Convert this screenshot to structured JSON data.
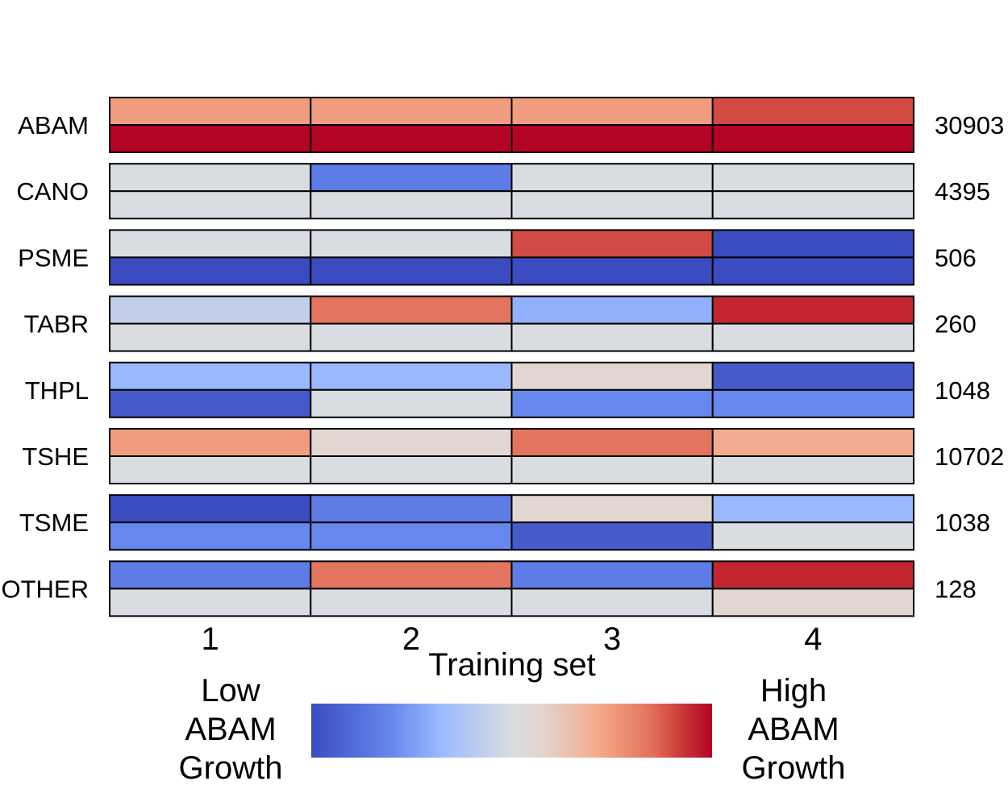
{
  "chart_data": {
    "type": "heatmap",
    "title": "",
    "xlabel": "Training set",
    "ylabel": "",
    "x_categories": [
      "1",
      "2",
      "3",
      "4"
    ],
    "rows": [
      {
        "label": "ABAM",
        "count": "30903",
        "top": [
          0.75,
          0.75,
          0.75,
          0.9
        ],
        "bottom": [
          1.0,
          1.0,
          1.0,
          1.0
        ]
      },
      {
        "label": "CANO",
        "count": "4395",
        "top": [
          0.5,
          0.16,
          0.5,
          0.5
        ],
        "bottom": [
          0.5,
          0.5,
          0.5,
          0.5
        ]
      },
      {
        "label": "PSME",
        "count": "506",
        "top": [
          0.5,
          0.5,
          0.9,
          0.0
        ],
        "bottom": [
          0.0,
          0.0,
          0.0,
          0.0
        ]
      },
      {
        "label": "TABR",
        "count": "260",
        "top": [
          0.43,
          0.84,
          0.3,
          0.95
        ],
        "bottom": [
          0.5,
          0.5,
          0.5,
          0.5
        ]
      },
      {
        "label": "THPL",
        "count": "1048",
        "top": [
          0.32,
          0.32,
          0.57,
          0.05
        ],
        "bottom": [
          0.05,
          0.5,
          0.2,
          0.2
        ]
      },
      {
        "label": "TSHE",
        "count": "10702",
        "top": [
          0.75,
          0.57,
          0.84,
          0.71
        ],
        "bottom": [
          0.5,
          0.5,
          0.5,
          0.5
        ]
      },
      {
        "label": "TSME",
        "count": "1038",
        "top": [
          0.0,
          0.16,
          0.57,
          0.32
        ],
        "bottom": [
          0.2,
          0.2,
          0.05,
          0.5
        ]
      },
      {
        "label": "OTHER",
        "count": "128",
        "top": [
          0.16,
          0.84,
          0.16,
          0.95
        ],
        "bottom": [
          0.5,
          0.5,
          0.5,
          0.57
        ]
      }
    ],
    "colorscale": {
      "range": [
        0,
        1
      ],
      "stops": [
        {
          "t": 0.0,
          "color": "#3a4cc0"
        },
        {
          "t": 0.2,
          "color": "#6688ee"
        },
        {
          "t": 0.33,
          "color": "#9ebcff"
        },
        {
          "t": 0.5,
          "color": "#d9dce1"
        },
        {
          "t": 0.57,
          "color": "#e2d6d1"
        },
        {
          "t": 0.72,
          "color": "#f4a98a"
        },
        {
          "t": 0.85,
          "color": "#e2705a"
        },
        {
          "t": 0.93,
          "color": "#c93336"
        },
        {
          "t": 1.0,
          "color": "#b40426"
        }
      ],
      "low_label": [
        "Low",
        "ABAM",
        "Growth"
      ],
      "high_label": [
        "High",
        "ABAM",
        "Growth"
      ]
    },
    "grid": false,
    "legend": "bottom"
  }
}
